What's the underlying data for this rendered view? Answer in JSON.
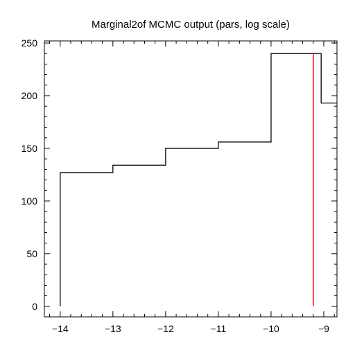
{
  "chart_data": {
    "type": "histogram-step",
    "title": "Marginal2of MCMC output (pars, log scale)",
    "xlabel": "",
    "ylabel": "",
    "xlim": [
      -14.3,
      -8.75
    ],
    "ylim": [
      -10,
      252
    ],
    "x_ticks": [
      -14,
      -13,
      -12,
      -11,
      -10,
      -9
    ],
    "x_tick_labels": [
      "−14",
      "−13",
      "−12",
      "−11",
      "−10",
      "−9"
    ],
    "y_ticks": [
      0,
      50,
      100,
      150,
      200,
      250
    ],
    "y_tick_labels": [
      "0",
      "50",
      "100",
      "150",
      "200",
      "250"
    ],
    "bin_edges": [
      -14,
      -13,
      -12,
      -11,
      -10,
      -9.05,
      -8.75
    ],
    "counts": [
      127,
      134,
      150,
      156,
      240,
      193
    ],
    "reference_line": {
      "x": -9.2,
      "y_range": [
        0,
        240
      ],
      "color": "#ff0000"
    },
    "step_color": "#000000",
    "grid": false,
    "legend": "none"
  }
}
